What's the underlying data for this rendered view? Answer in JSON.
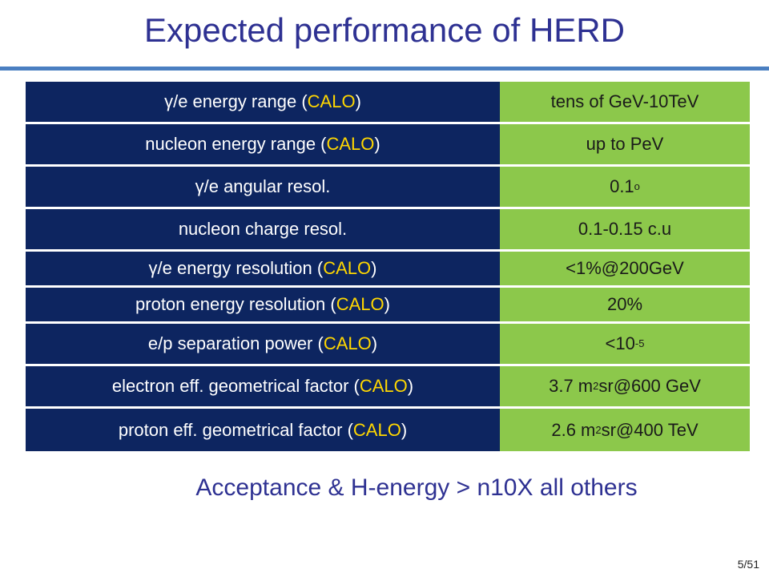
{
  "slide": {
    "title": "Expected performance of HERD",
    "footer": "Acceptance & H-energy > n10X all others",
    "page": "5/51"
  },
  "table": {
    "rows": [
      {
        "label": "γ/e energy range (",
        "highlight": "CALO",
        "label_end": ")",
        "value": "tens of GeV-10TeV",
        "value_sup": "",
        "value_end": ""
      },
      {
        "label": "nucleon energy range (",
        "highlight": "CALO",
        "label_end": ")",
        "value": "up to PeV",
        "value_sup": "",
        "value_end": ""
      },
      {
        "label": "γ/e angular resol.",
        "highlight": "",
        "label_end": "",
        "value": "0.1",
        "value_sup": "o",
        "value_end": ""
      },
      {
        "label": "nucleon charge resol.",
        "highlight": "",
        "label_end": "",
        "value": "0.1-0.15 c.u",
        "value_sup": "",
        "value_end": ""
      },
      {
        "label": "γ/e  energy resolution (",
        "highlight": "CALO",
        "label_end": ")",
        "value": "<1%@200GeV",
        "value_sup": "",
        "value_end": ""
      },
      {
        "label": "proton energy resolution (",
        "highlight": "CALO",
        "label_end": ")",
        "value": "20%",
        "value_sup": "",
        "value_end": ""
      },
      {
        "label": "e/p separation power (",
        "highlight": "CALO",
        "label_end": ")",
        "value": "<10",
        "value_sup": "-5",
        "value_end": ""
      },
      {
        "label": "electron eff. geometrical factor (",
        "highlight": "CALO",
        "label_end": ")",
        "value": "3.7 m",
        "value_sup": "2",
        "value_end": "sr@600 GeV"
      },
      {
        "label": "proton eff. geometrical factor (",
        "highlight": "CALO",
        "label_end": ")",
        "value": "2.6 m",
        "value_sup": "2",
        "value_end": "sr@400 TeV"
      }
    ]
  },
  "colors": {
    "title": "#2e3192",
    "left_cell_bg": "#0d2560",
    "right_cell_bg": "#8cc84b",
    "highlight": "#ffd700",
    "rule": "#4a7fc1"
  }
}
